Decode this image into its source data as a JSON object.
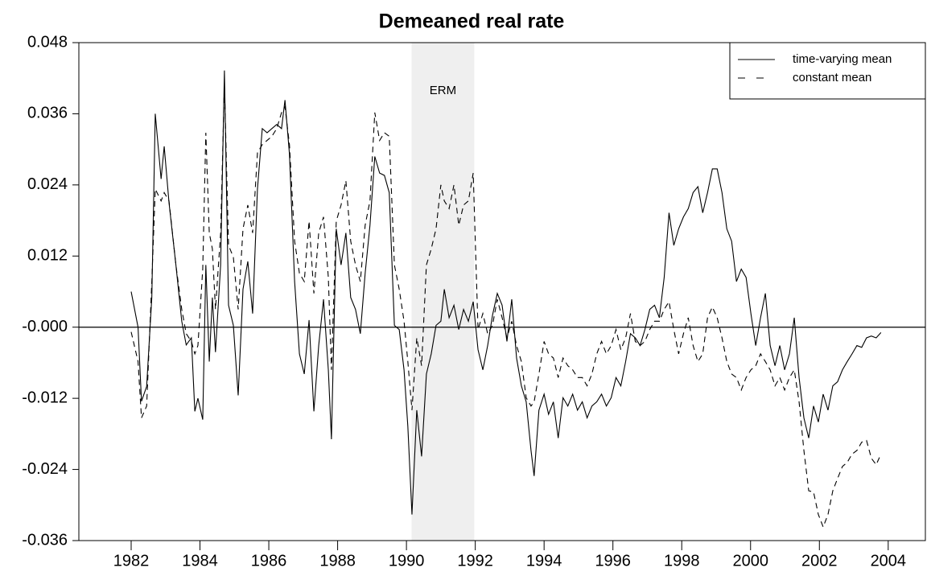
{
  "chart_data": {
    "type": "line",
    "title": "Demeaned real rate",
    "x": [
      1982.0,
      1982.2,
      1982.3,
      1982.45,
      1982.6,
      1982.7,
      1982.87,
      1982.96,
      1983.1,
      1983.3,
      1983.47,
      1983.6,
      1983.75,
      1983.85,
      1983.94,
      1984.08,
      1984.17,
      1984.27,
      1984.36,
      1984.45,
      1984.6,
      1984.71,
      1984.83,
      1984.97,
      1985.11,
      1985.25,
      1985.39,
      1985.53,
      1985.67,
      1985.81,
      1985.95,
      1986.09,
      1986.23,
      1986.37,
      1986.47,
      1986.6,
      1986.75,
      1986.89,
      1987.03,
      1987.17,
      1987.31,
      1987.45,
      1987.59,
      1987.73,
      1987.82,
      1987.96,
      1988.1,
      1988.24,
      1988.38,
      1988.52,
      1988.66,
      1988.8,
      1988.94,
      1989.08,
      1989.22,
      1989.36,
      1989.5,
      1989.65,
      1989.79,
      1989.93,
      1990.04,
      1990.16,
      1990.3,
      1990.44,
      1990.58,
      1990.72,
      1990.86,
      1991.0,
      1991.1,
      1991.24,
      1991.38,
      1991.52,
      1991.66,
      1991.8,
      1991.94,
      1992.08,
      1992.22,
      1992.36,
      1992.5,
      1992.64,
      1992.78,
      1992.92,
      1993.06,
      1993.2,
      1993.34,
      1993.48,
      1993.62,
      1993.71,
      1993.85,
      1994.0,
      1994.13,
      1994.27,
      1994.41,
      1994.55,
      1994.69,
      1994.83,
      1994.97,
      1995.11,
      1995.25,
      1995.39,
      1995.53,
      1995.67,
      1995.81,
      1995.95,
      1996.09,
      1996.23,
      1996.37,
      1996.51,
      1996.65,
      1996.79,
      1996.93,
      1997.07,
      1997.21,
      1997.35,
      1997.49,
      1997.63,
      1997.77,
      1997.91,
      1998.05,
      1998.19,
      1998.33,
      1998.47,
      1998.61,
      1998.75,
      1998.89,
      1999.03,
      1999.17,
      1999.31,
      1999.45,
      1999.59,
      1999.73,
      1999.87,
      2000.01,
      2000.15,
      2000.29,
      2000.43,
      2000.57,
      2000.71,
      2000.85,
      2000.99,
      2001.13,
      2001.27,
      2001.41,
      2001.55,
      2001.69,
      2001.83,
      2001.97,
      2002.11,
      2002.25,
      2002.39,
      2002.53,
      2002.67,
      2002.81,
      2002.95,
      2003.09,
      2003.23,
      2003.37,
      2003.51,
      2003.65,
      2003.79
    ],
    "series": [
      {
        "name": "time-varying mean",
        "color": "#000000",
        "dash": "solid",
        "values": [
          0.006,
          0,
          -0.0125,
          -0.01,
          0.005,
          0.036,
          0.025,
          0.0305,
          0.021,
          0.0105,
          0.001,
          -0.003,
          -0.0018,
          -0.0142,
          -0.012,
          -0.0156,
          0.0105,
          -0.0058,
          0.005,
          -0.0042,
          0.0105,
          0.0433,
          0.0037,
          0.0003,
          -0.0115,
          0.0064,
          0.0111,
          0.0023,
          0.0233,
          0.0335,
          0.0328,
          0.0335,
          0.0342,
          0.0335,
          0.0383,
          0.0292,
          0.0077,
          -0.0045,
          -0.0079,
          0.0012,
          -0.0142,
          -0.0031,
          0.0047,
          -0.0072,
          -0.0189,
          0.0166,
          0.0105,
          0.0159,
          0.005,
          0.003,
          -0.0011,
          0.0091,
          0.0172,
          0.0288,
          0.026,
          0.0256,
          0.0227,
          0.0003,
          -0.0004,
          -0.0072,
          -0.0167,
          -0.0316,
          -0.014,
          -0.0218,
          -0.0079,
          -0.0045,
          0.0003,
          0.001,
          0.0064,
          0.0016,
          0.0037,
          -0.0004,
          0.003,
          0.001,
          0.0043,
          -0.0038,
          -0.0072,
          -0.0031,
          0.002,
          0.0057,
          0.0037,
          -0.0024,
          0.0047,
          -0.0052,
          -0.0099,
          -0.0126,
          -0.0208,
          -0.0251,
          -0.014,
          -0.0113,
          -0.0147,
          -0.0126,
          -0.0187,
          -0.0119,
          -0.0133,
          -0.0113,
          -0.014,
          -0.0126,
          -0.0153,
          -0.0133,
          -0.0126,
          -0.0113,
          -0.0133,
          -0.0119,
          -0.0085,
          -0.0099,
          -0.0058,
          -0.0011,
          -0.0018,
          -0.0031,
          -0.0004,
          0.003,
          0.0037,
          0.0016,
          0.0084,
          0.0193,
          0.0138,
          0.0166,
          0.0186,
          0.02,
          0.0227,
          0.0237,
          0.0193,
          0.0227,
          0.0267,
          0.0267,
          0.0227,
          0.0166,
          0.0145,
          0.0077,
          0.0098,
          0.0084,
          0.0023,
          -0.0031,
          0.0016,
          0.0057,
          -0.0031,
          -0.0065,
          -0.0031,
          -0.0072,
          -0.0045,
          0.0016,
          -0.0085,
          -0.0153,
          -0.0187,
          -0.0133,
          -0.016,
          -0.0113,
          -0.014,
          -0.0099,
          -0.0092,
          -0.0072,
          -0.0058,
          -0.0045,
          -0.0031,
          -0.0034,
          -0.0018,
          -0.0015,
          -0.0018,
          -0.0009
        ]
      },
      {
        "name": "constant mean",
        "color": "#000000",
        "dash": "dashed",
        "values": [
          -0.0008,
          -0.0058,
          -0.0153,
          -0.0133,
          0.0077,
          0.0233,
          0.0213,
          0.0227,
          0.0213,
          0.0105,
          0.003,
          -0.0011,
          -0.0024,
          -0.0045,
          -0.0031,
          0.0098,
          0.0328,
          0.0159,
          0.0132,
          0.003,
          0.0159,
          0.041,
          0.0138,
          0.0118,
          0.003,
          0.0166,
          0.0206,
          0.0159,
          0.0294,
          0.0308,
          0.0315,
          0.0322,
          0.0335,
          0.0362,
          0.0372,
          0.0308,
          0.0145,
          0.0091,
          0.0077,
          0.0179,
          0.0057,
          0.0159,
          0.0186,
          0.0084,
          -0.0072,
          0.0179,
          0.0206,
          0.0247,
          0.0145,
          0.0105,
          0.0077,
          0.0172,
          0.0213,
          0.0362,
          0.0315,
          0.0328,
          0.0322,
          0.0105,
          0.0064,
          0.001,
          -0.0058,
          -0.014,
          -0.0018,
          -0.0065,
          0.0105,
          0.0132,
          0.0166,
          0.024,
          0.0213,
          0.02,
          0.024,
          0.0172,
          0.0206,
          0.0213,
          0.026,
          -0.0004,
          0.0023,
          -0.0011,
          0.0003,
          0.0047,
          0.0016,
          -0.0018,
          0.001,
          -0.0031,
          -0.0058,
          -0.0119,
          -0.0133,
          -0.0126,
          -0.0079,
          -0.0024,
          -0.0045,
          -0.0052,
          -0.0085,
          -0.0052,
          -0.0065,
          -0.0072,
          -0.0085,
          -0.0085,
          -0.0099,
          -0.0079,
          -0.0045,
          -0.0024,
          -0.0045,
          -0.0031,
          -0.0004,
          -0.0038,
          -0.0018,
          0.0023,
          -0.0024,
          -0.0031,
          -0.0024,
          -0.0004,
          0.001,
          0.001,
          0.003,
          0.0043,
          -0.0004,
          -0.0045,
          -0.0011,
          0.0016,
          -0.0031,
          -0.0058,
          -0.0045,
          0.0016,
          0.0034,
          0.0016,
          -0.0018,
          -0.0058,
          -0.0079,
          -0.0085,
          -0.0106,
          -0.0085,
          -0.0072,
          -0.0065,
          -0.0045,
          -0.0058,
          -0.0072,
          -0.0099,
          -0.0085,
          -0.0106,
          -0.0085,
          -0.0072,
          -0.0126,
          -0.0208,
          -0.0276,
          -0.0278,
          -0.0316,
          -0.0337,
          -0.0316,
          -0.0276,
          -0.0255,
          -0.0235,
          -0.0228,
          -0.0214,
          -0.0208,
          -0.0194,
          -0.0191,
          -0.0221,
          -0.0232,
          -0.0214
        ]
      }
    ],
    "shade": {
      "x": [
        1990.15,
        1991.97
      ],
      "label": "ERM",
      "color": "#efefef"
    },
    "reference_line": 0,
    "xlim": [
      1980.48,
      2005.08
    ],
    "xticks": [
      1982,
      1984,
      1986,
      1988,
      1990,
      1992,
      1994,
      1996,
      1998,
      2000,
      2002,
      2004
    ],
    "ylim": [
      -0.036,
      0.048
    ],
    "yticks": [
      0.048,
      0.036,
      0.024,
      0.012,
      {
        "value": 0,
        "label": "-0.000"
      },
      -0.012,
      -0.024,
      -0.036
    ],
    "legend": "top-right"
  }
}
